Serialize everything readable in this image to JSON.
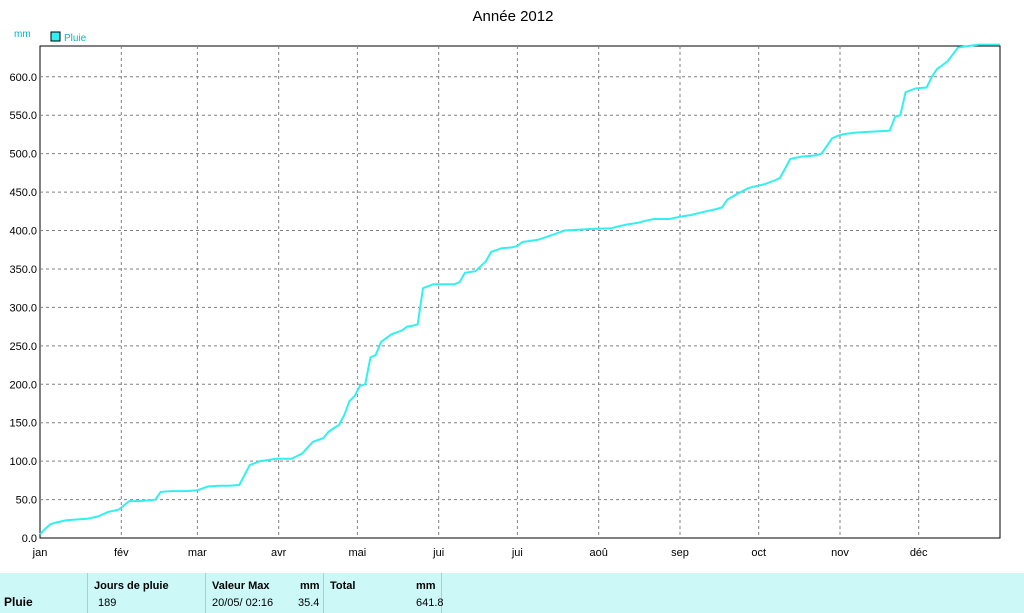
{
  "chart_data": {
    "type": "line",
    "title": "Année 2012",
    "y_unit": "mm",
    "legend": {
      "placement": "top-left",
      "entries": [
        "Pluie"
      ]
    },
    "ylim": [
      0,
      640
    ],
    "y_ticks": [
      "0.0",
      "50.0",
      "100.0",
      "150.0",
      "200.0",
      "250.0",
      "300.0",
      "350.0",
      "400.0",
      "450.0",
      "500.0",
      "550.0",
      "600.0"
    ],
    "x_ticks": [
      "jan",
      "fév",
      "mar",
      "avr",
      "mai",
      "jui",
      "jui",
      "aoû",
      "sep",
      "oct",
      "nov",
      "déc"
    ],
    "xlim_days": [
      0,
      366
    ],
    "grid": true,
    "series": [
      {
        "name": "Pluie",
        "color": "#33f0f0",
        "x_day_of_year": [
          0,
          2,
          4,
          6,
          10,
          14,
          18,
          22,
          26,
          30,
          34,
          38,
          42,
          44,
          46,
          50,
          54,
          56,
          60,
          64,
          68,
          70,
          72,
          76,
          80,
          84,
          88,
          90,
          92,
          94,
          96,
          100,
          104,
          108,
          110,
          112,
          114,
          116,
          118,
          120,
          122,
          124,
          126,
          128,
          130,
          134,
          138,
          140,
          142,
          144,
          146,
          150,
          154,
          156,
          158,
          160,
          162,
          166,
          170,
          172,
          176,
          180,
          182,
          184,
          190,
          196,
          200,
          210,
          218,
          220,
          224,
          228,
          230,
          234,
          240,
          244,
          248,
          254,
          258,
          260,
          262,
          266,
          270,
          272,
          276,
          280,
          282,
          284,
          286,
          290,
          294,
          296,
          298,
          300,
          302,
          304,
          306,
          310,
          314,
          320,
          324,
          326,
          328,
          330,
          334,
          338,
          340,
          342,
          346,
          350,
          354,
          356,
          358,
          362,
          366
        ],
        "values": [
          5,
          12,
          18,
          20,
          23,
          24,
          25,
          28,
          34,
          37,
          48,
          48,
          49,
          50,
          60,
          61,
          61,
          61,
          62,
          67,
          68,
          68,
          68,
          69,
          95,
          100,
          102,
          103,
          103,
          103,
          103,
          110,
          125,
          130,
          138,
          143,
          147,
          160,
          178,
          185,
          198,
          200,
          235,
          238,
          255,
          265,
          270,
          275,
          276,
          278,
          325,
          330,
          330,
          330,
          330,
          333,
          345,
          347,
          360,
          372,
          377,
          378,
          380,
          385,
          388,
          395,
          400,
          402,
          403,
          405,
          408,
          410,
          412,
          415,
          415,
          418,
          420,
          425,
          428,
          430,
          440,
          448,
          455,
          457,
          460,
          465,
          468,
          480,
          493,
          496,
          497,
          498,
          500,
          510,
          520,
          523,
          525,
          527,
          528,
          529,
          530,
          548,
          550,
          580,
          585,
          586,
          600,
          610,
          620,
          638,
          640,
          641,
          641.8,
          641.8,
          641.8
        ]
      }
    ]
  },
  "summary": {
    "row_label": "Pluie",
    "jours_header": "Jours de pluie",
    "jours_value": "189",
    "vmax_header": "Valeur Max",
    "vmax_unit": "mm",
    "vmax_date": "20/05/  02:16",
    "vmax_value": "35.4",
    "total_header": "Total",
    "total_unit": "mm",
    "total_value": "641.8"
  }
}
